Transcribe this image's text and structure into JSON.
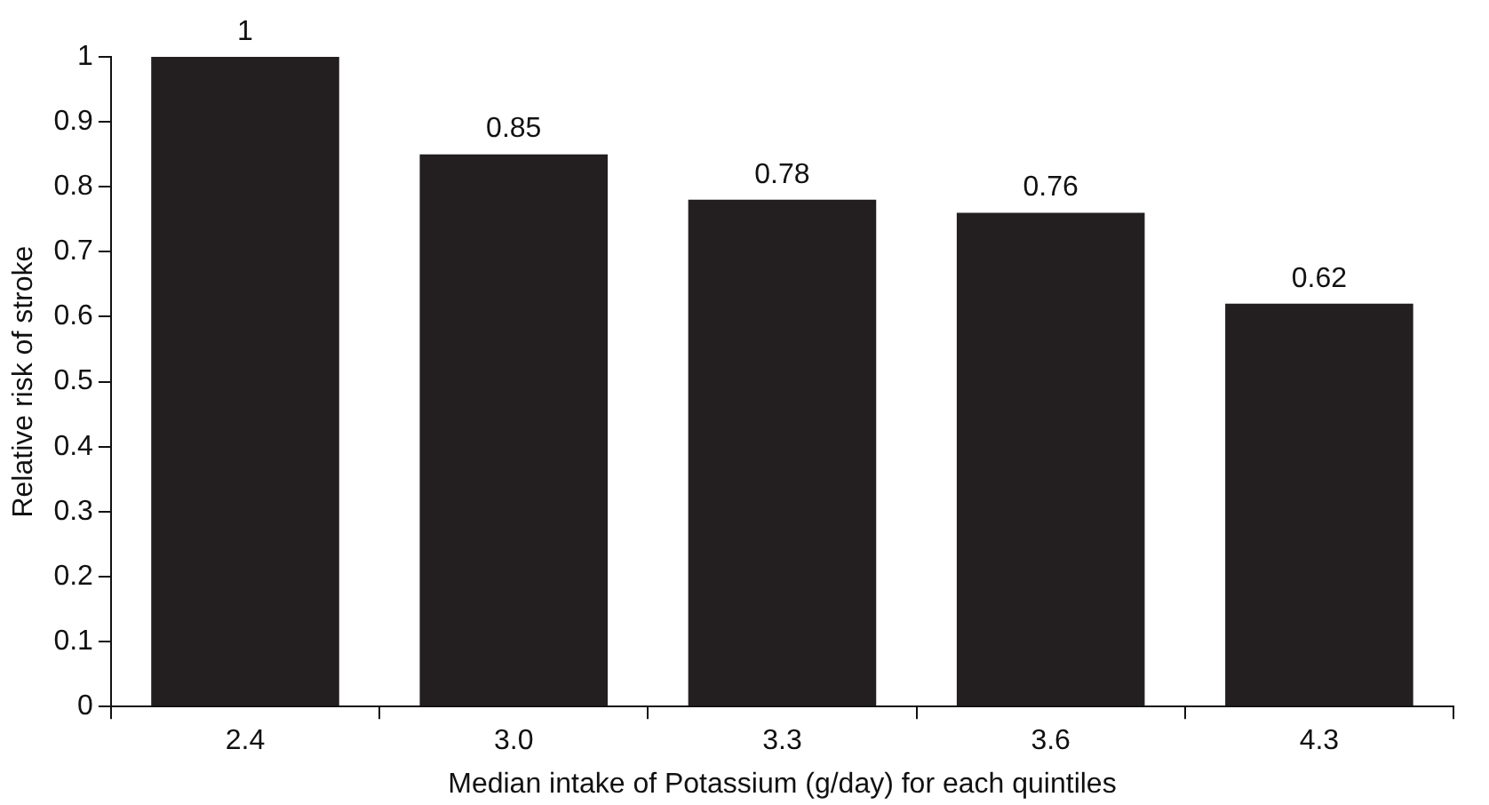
{
  "chart_data": {
    "type": "bar",
    "xlabel": "Median intake of Potassium (g/day) for each quintiles",
    "ylabel": "Relative risk of stroke",
    "categories": [
      "2.4",
      "3.0",
      "3.3",
      "3.6",
      "4.3"
    ],
    "values": [
      1,
      0.85,
      0.78,
      0.76,
      0.62
    ],
    "color": "#231f20",
    "ylim": [
      0,
      1
    ],
    "yticks": [
      0,
      0.1,
      0.2,
      0.3,
      0.4,
      0.5,
      0.6,
      0.7,
      0.8,
      0.9,
      1
    ],
    "grid": false,
    "legend": false,
    "data_labels": true
  }
}
